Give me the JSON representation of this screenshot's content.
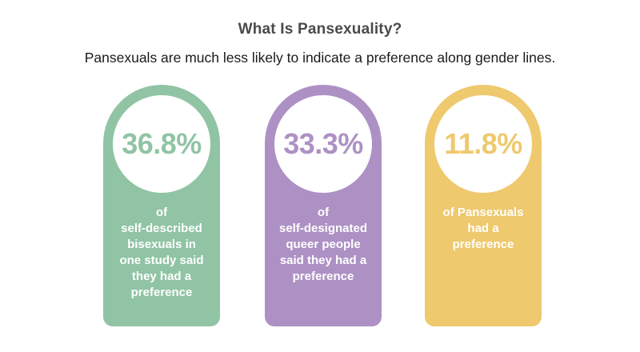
{
  "header": {
    "title": "What Is Pansexuality?",
    "subtitle": "Pansexuals are much less likely to indicate a preference along gender lines."
  },
  "cards": [
    {
      "percent": "36.8%",
      "description": "of\nself-described\nbisexuals in\none study said\nthey had a\npreference",
      "color": "#90c4a4"
    },
    {
      "percent": "33.3%",
      "description": "of\nself-designated\nqueer people\nsaid they had a\npreference",
      "color": "#ad91c4"
    },
    {
      "percent": "11.8%",
      "description": "of Pansexuals\nhad a\npreference",
      "color": "#eec96e"
    }
  ]
}
